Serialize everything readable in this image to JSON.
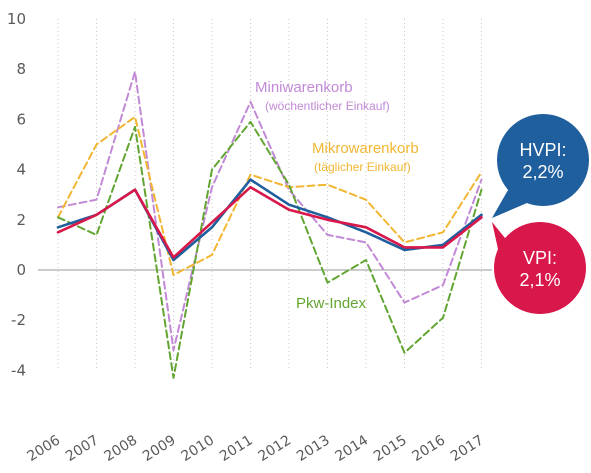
{
  "chart_data": {
    "type": "line",
    "x": [
      "2006",
      "2007",
      "2008",
      "2009",
      "2010",
      "2011",
      "2012",
      "2013",
      "2014",
      "2015",
      "2016",
      "2017"
    ],
    "ylim": [
      -4,
      10
    ],
    "yticks": [
      -4,
      -2,
      0,
      2,
      4,
      6,
      8,
      10
    ],
    "grid": "vertical dotted",
    "series": [
      {
        "name": "Miniwarenkorb",
        "style": "dashed",
        "color": "#c28ad6",
        "values": [
          2.5,
          2.8,
          7.9,
          -3.2,
          3.3,
          6.7,
          3.2,
          1.4,
          1.1,
          -1.3,
          -0.6,
          3.6
        ]
      },
      {
        "name": "Mikrowarenkorb",
        "style": "dashed",
        "color": "#f2b632",
        "values": [
          2.1,
          5.0,
          6.1,
          -0.2,
          0.6,
          3.8,
          3.3,
          3.4,
          2.8,
          1.1,
          1.5,
          3.9
        ]
      },
      {
        "name": "Pkw-Index",
        "style": "dashed",
        "color": "#62a532",
        "values": [
          2.1,
          1.4,
          5.7,
          -4.3,
          4.0,
          5.9,
          3.4,
          -0.5,
          0.4,
          -3.3,
          -1.9,
          3.2
        ]
      },
      {
        "name": "HVPI",
        "style": "solid",
        "color": "#1f5f9e",
        "values": [
          1.7,
          2.2,
          3.2,
          0.4,
          1.7,
          3.6,
          2.6,
          2.1,
          1.5,
          0.8,
          1.0,
          2.2
        ]
      },
      {
        "name": "VPI",
        "style": "solid",
        "color": "#d8174a",
        "values": [
          1.5,
          2.2,
          3.2,
          0.5,
          1.9,
          3.3,
          2.4,
          2.0,
          1.7,
          0.9,
          0.9,
          2.1
        ]
      }
    ],
    "annotations": [
      {
        "key": "mini",
        "lines": [
          "Miniwarenkorb",
          "(wöchentlicher Einkauf)"
        ],
        "color": "#c28ad6"
      },
      {
        "key": "mikro",
        "lines": [
          "Mikrowarenkorb",
          "(täglicher Einkauf)"
        ],
        "color": "#f2b632"
      },
      {
        "key": "pkw",
        "lines": [
          "Pkw-Index"
        ],
        "color": "#62a532"
      }
    ],
    "bubbles": [
      {
        "key": "hvpi",
        "lines": [
          "HVPI:",
          "2,2%"
        ],
        "color": "#1f5f9e"
      },
      {
        "key": "vpi",
        "lines": [
          "VPI:",
          "2,1%"
        ],
        "color": "#d8174a"
      }
    ]
  }
}
